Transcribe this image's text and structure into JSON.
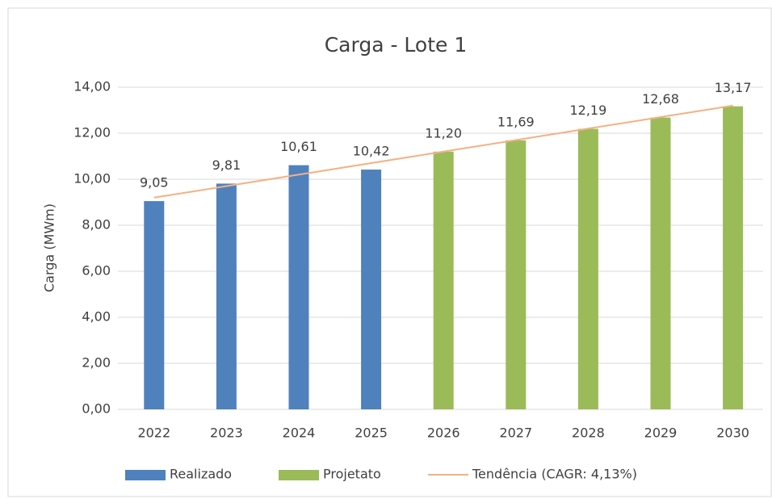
{
  "chart_data": {
    "type": "bar",
    "title": "Carga - Lote 1",
    "y_label": "Carga (MWm)",
    "categories": [
      "2022",
      "2023",
      "2024",
      "2025",
      "2026",
      "2027",
      "2028",
      "2029",
      "2030"
    ],
    "series": [
      {
        "name": "Realizado",
        "type": "bar",
        "color": "#4f81bd",
        "values": [
          9.05,
          9.81,
          10.61,
          10.42,
          null,
          null,
          null,
          null,
          null
        ],
        "value_labels": [
          "9,05",
          "9,81",
          "10,61",
          "10,42",
          null,
          null,
          null,
          null,
          null
        ]
      },
      {
        "name": "Projetato",
        "type": "bar",
        "color": "#9bbb59",
        "values": [
          null,
          null,
          null,
          null,
          11.2,
          11.69,
          12.19,
          12.68,
          13.17
        ],
        "value_labels": [
          null,
          null,
          null,
          null,
          "11,20",
          "11,69",
          "12,19",
          "12,68",
          "13,17"
        ]
      },
      {
        "name": "Tendência (CAGR: 4,13%)",
        "type": "line",
        "color": "#f4b183",
        "values": [
          9.2,
          9.7,
          10.2,
          10.7,
          11.2,
          11.7,
          12.2,
          12.7,
          13.2
        ]
      }
    ],
    "ylim": [
      0,
      14
    ],
    "yticks": [
      {
        "value": 0,
        "label": "0,00"
      },
      {
        "value": 2,
        "label": "2,00"
      },
      {
        "value": 4,
        "label": "4,00"
      },
      {
        "value": 6,
        "label": "6,00"
      },
      {
        "value": 8,
        "label": "8,00"
      },
      {
        "value": 10,
        "label": "10,00"
      },
      {
        "value": 12,
        "label": "12,00"
      },
      {
        "value": 14,
        "label": "14,00"
      }
    ],
    "grid": true,
    "legend": "bottom"
  }
}
